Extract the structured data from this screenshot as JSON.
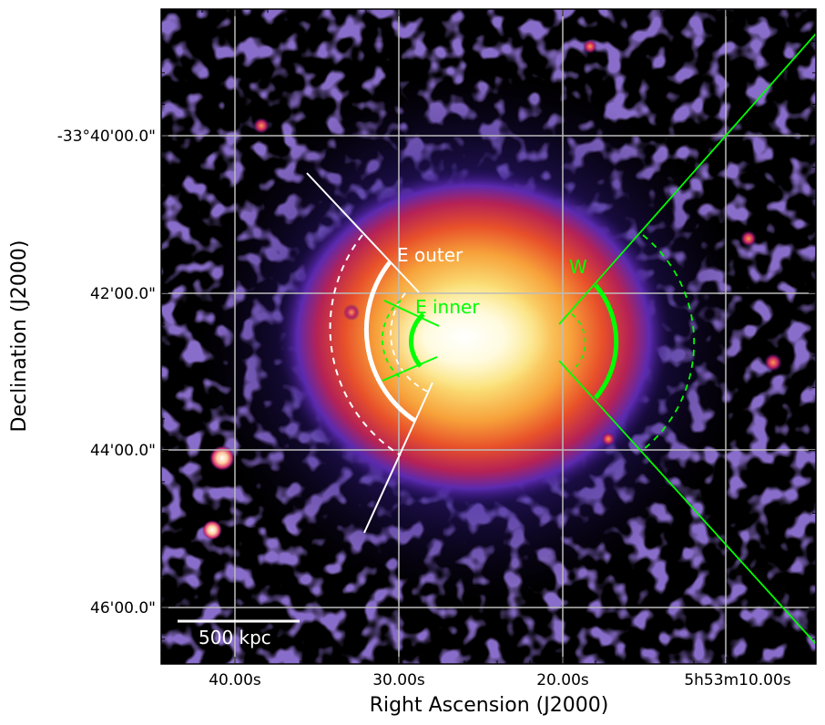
{
  "figure": {
    "x_axis_title": "Right Ascension (J2000)",
    "y_axis_title": "Declination (J2000)",
    "x_tick_labels": [
      "40.00s",
      "30.00s",
      "20.00s",
      "5h53m10.00s"
    ],
    "y_tick_labels": [
      "-33°40'00.0\"",
      "42'00.0\"",
      "44'00.0\"",
      "46'00.0\""
    ],
    "grid": true,
    "colormap": "x-ray surface brightness (black-purple-red-yellow-white)"
  },
  "annotations": {
    "e_outer": "E outer",
    "e_inner": "E inner",
    "w": "W",
    "scale_bar": "500 kpc"
  },
  "colors": {
    "outer_region": "#ffffff",
    "inner_region": "#00ff00",
    "grid": "#b8b8b8",
    "frame": "#000000"
  }
}
